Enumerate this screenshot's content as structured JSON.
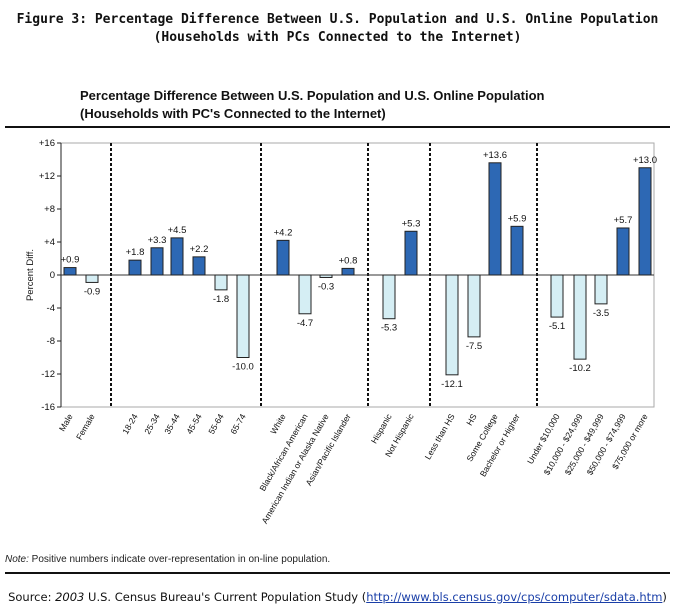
{
  "figure": {
    "title_line1": "Figure 3: Percentage Difference Between U.S. Population and U.S. Online Population",
    "title_line2": "(Households with PCs Connected to the Internet)"
  },
  "note": {
    "label": "Note:",
    "text": " Positive numbers indicate over-representation in on-line population."
  },
  "source": {
    "label": "Source:",
    "year": "2003",
    "text": " U.S. Census Bureau's Current Population Study (",
    "link": "http://www.bls.census.gov/cps/computer/sdata.htm",
    "close": ")"
  },
  "colors": {
    "positive": "#2d68b4",
    "negative": "#d5eef4",
    "outline": "#222222"
  },
  "chart_data": {
    "type": "bar",
    "title": "Percentage Difference Between U.S. Population and U.S. Online Population",
    "subtitle": "(Households with PC's Connected to the Internet)",
    "ylabel": "Percent Diff.",
    "ylim": [
      -16,
      16
    ],
    "yticks": [
      "+16",
      "+12",
      "+8",
      "+4",
      "0",
      "-4",
      "-8",
      "-12",
      "-16"
    ],
    "yticks_values": [
      16,
      12,
      8,
      4,
      0,
      -4,
      -8,
      -12,
      -16
    ],
    "groups": [
      {
        "categories": [
          "Male",
          "Female"
        ],
        "values": [
          0.9,
          -0.9
        ],
        "labels": [
          "+0.9",
          "-0.9"
        ]
      },
      {
        "categories": [
          "18-24",
          "25-34",
          "35-44",
          "45-54",
          "55-64",
          "65-74"
        ],
        "values": [
          1.8,
          3.3,
          4.5,
          2.2,
          -1.8,
          -10.0
        ],
        "labels": [
          "+1.8",
          "+3.3",
          "+4.5",
          "+2.2",
          "-1.8",
          "-10.0"
        ]
      },
      {
        "categories": [
          "White",
          "Black/African American",
          "American Indian or Alaska Native",
          "Asian/Pacific Islander"
        ],
        "values": [
          4.2,
          -4.7,
          -0.3,
          0.8
        ],
        "labels": [
          "+4.2",
          "-4.7",
          "-0.3",
          "+0.8"
        ]
      },
      {
        "categories": [
          "Hispanic",
          "Not Hispanic"
        ],
        "values": [
          -5.3,
          5.3
        ],
        "labels": [
          "-5.3",
          "+5.3"
        ]
      },
      {
        "categories": [
          "Less than HS",
          "HS",
          "Some College",
          "Bachelor or Higher"
        ],
        "values": [
          -12.1,
          -7.5,
          13.6,
          5.9
        ],
        "labels": [
          "-12.1",
          "-7.5",
          "+13.6",
          "+5.9"
        ]
      },
      {
        "categories": [
          "Under $10,000",
          "$10,000 - $24,999",
          "$25,000 - $49,999",
          "$50,000 - $74,999",
          "$75,000 or more"
        ],
        "values": [
          -5.1,
          -10.2,
          -3.5,
          5.7,
          13.0
        ],
        "labels": [
          "-5.1",
          "-10.2",
          "-3.5",
          "+5.7",
          "+13.0"
        ]
      }
    ]
  }
}
